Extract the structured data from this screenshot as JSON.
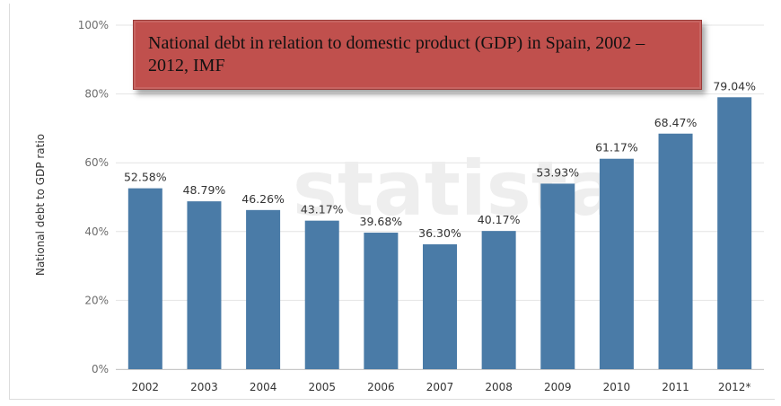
{
  "chart_data": {
    "type": "bar",
    "title": "National debt in relation to domestic product (GDP) in Spain, 2002 – 2012, IMF",
    "ylabel": "National debt to GDP ratio",
    "xlabel": "",
    "watermark": "statista",
    "categories": [
      "2002",
      "2003",
      "2004",
      "2005",
      "2006",
      "2007",
      "2008",
      "2009",
      "2010",
      "2011",
      "2012*"
    ],
    "values": [
      52.58,
      48.79,
      46.26,
      43.17,
      39.68,
      36.3,
      40.17,
      53.93,
      61.17,
      68.47,
      79.04
    ],
    "value_labels": [
      "52.58%",
      "48.79%",
      "46.26%",
      "43.17%",
      "39.68%",
      "36.30%",
      "40.17%",
      "53.93%",
      "61.17%",
      "68.47%",
      "79.04%"
    ],
    "ylim": [
      0,
      100
    ],
    "yticks": [
      0,
      20,
      40,
      60,
      80,
      100
    ],
    "ytick_labels": [
      "0%",
      "20%",
      "40%",
      "60%",
      "80%",
      "100%"
    ],
    "grid": true,
    "legend": "none",
    "bar_color": "#4a7ba7",
    "title_box_color": "#c0504d"
  }
}
